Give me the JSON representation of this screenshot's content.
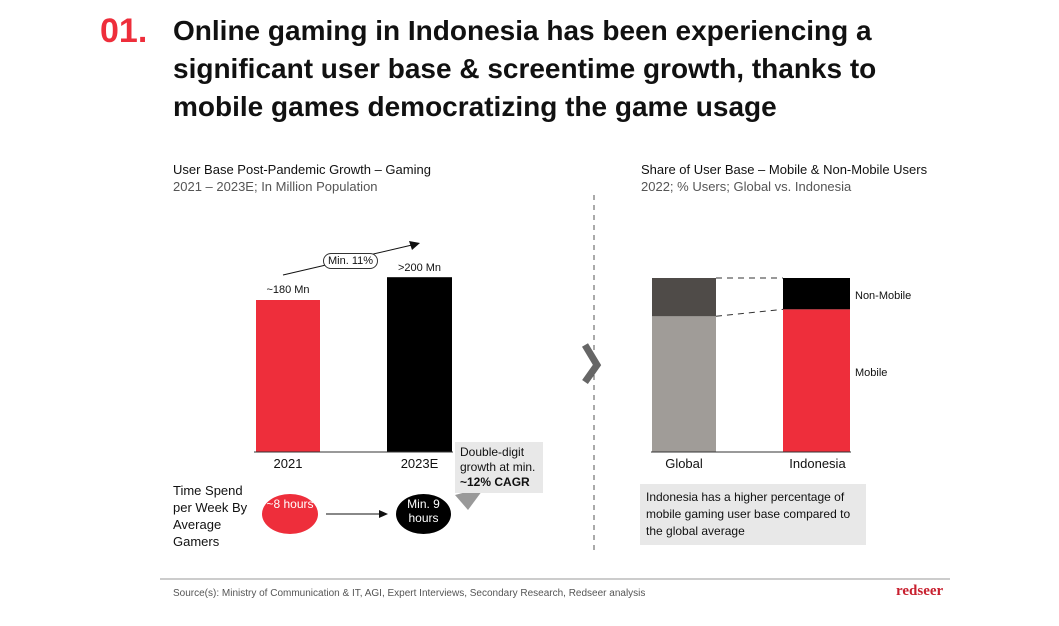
{
  "header": {
    "number": "01.",
    "title": "Online gaming in Indonesia has been experiencing a significant user base & screentime growth, thanks to mobile games democratizing the game usage"
  },
  "colors": {
    "red": "#ee2e3b",
    "black": "#000000",
    "dark_gray": "#4f4b48",
    "gray": "#a09c98"
  },
  "chart_data": [
    {
      "type": "bar",
      "title": "User Base Post-Pandemic Growth – Gaming",
      "subtitle": "2021 – 2023E; In Million Population",
      "categories": [
        "2021",
        "2023E"
      ],
      "values": [
        180,
        207
      ],
      "data_labels": [
        "~180 Mn",
        ">200 Mn"
      ],
      "annotation": "Min. 11%",
      "colors": [
        "#ee2e3b",
        "#000000"
      ]
    },
    {
      "type": "bar",
      "stacked": true,
      "title": "Share of User Base – Mobile  & Non-Mobile Users",
      "subtitle": "2022; % Users; Global vs. Indonesia",
      "categories": [
        "Global",
        "Indonesia"
      ],
      "series": [
        {
          "name": "Mobile",
          "values": [
            78,
            82
          ]
        },
        {
          "name": "Non-Mobile",
          "values": [
            22,
            18
          ]
        }
      ],
      "ylim": [
        0,
        100
      ]
    }
  ],
  "time_spend": {
    "label": "Time Spend per Week By Average Gamers",
    "from": "~8 hours",
    "to": "Min. 9 hours",
    "callout_line1": "Double-digit growth at min.",
    "callout_bold": "~12% CAGR"
  },
  "insight": "Indonesia has a higher percentage of mobile gaming user base compared to the global average",
  "footer": {
    "source": "Source(s): Ministry of Communication & IT, AGI, Expert Interviews, Secondary Research, Redseer analysis",
    "logo": "redseer"
  }
}
